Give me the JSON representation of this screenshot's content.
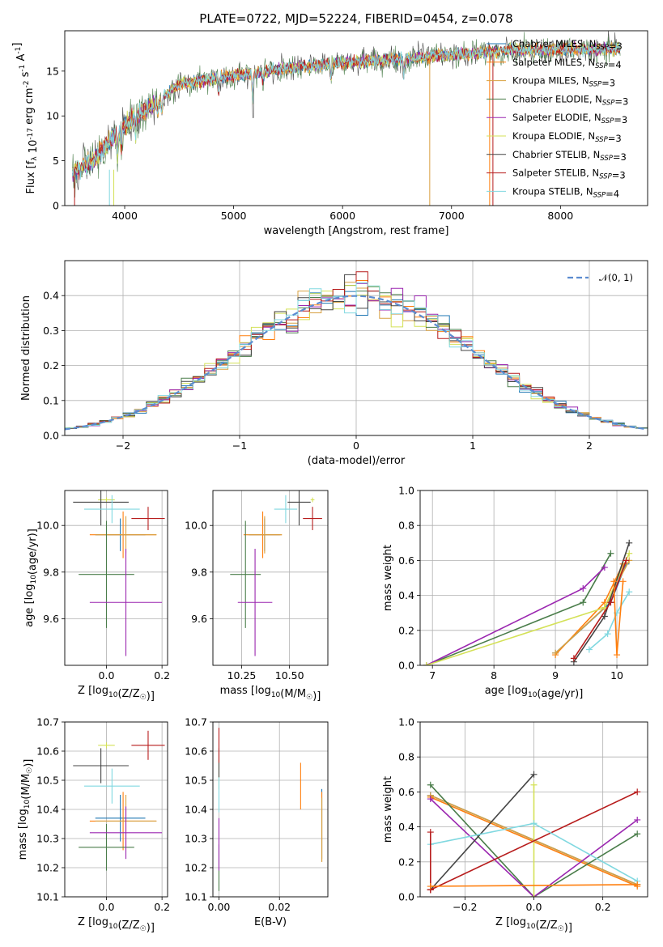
{
  "figure": {
    "title": "PLATE=0722, MJD=52224, FIBERID=0454, z=0.078"
  },
  "models": [
    {
      "label": "Chabrier MILES, N_SSP=3",
      "color": "#1f77b4"
    },
    {
      "label": "Salpeter MILES, N_SSP=4",
      "color": "#ff7f0e"
    },
    {
      "label": "Kroupa MILES, N_SSP=3",
      "color": "#d8a040"
    },
    {
      "label": "Chabrier ELODIE, N_SSP=3",
      "color": "#4a7d4a"
    },
    {
      "label": "Salpeter ELODIE, N_SSP=3",
      "color": "#9b27b0"
    },
    {
      "label": "Kroupa ELODIE, N_SSP=3",
      "color": "#d4e157"
    },
    {
      "label": "Chabrier STELIB, N_SSP=3",
      "color": "#444444"
    },
    {
      "label": "Salpeter STELIB, N_SSP=3",
      "color": "#b71c1c"
    },
    {
      "label": "Kroupa STELIB, N_SSP=4",
      "color": "#80d8e0"
    }
  ],
  "chart_data": [
    {
      "type": "line",
      "id": "spectrum",
      "xlabel": "wavelength [Angstrom, rest frame]",
      "ylabel": "Flux [f_λ 10^-17 erg cm^-2 s^-1 A^-1]",
      "xlim": [
        3450,
        8800
      ],
      "ylim": [
        0,
        19.5
      ],
      "xticks": [
        4000,
        5000,
        6000,
        7000,
        8000
      ],
      "yticks": [
        0,
        5,
        10,
        15
      ],
      "legend": "right",
      "continuum_x": [
        3500,
        3700,
        4000,
        4300,
        4500,
        5000,
        5500,
        6000,
        6500,
        7000,
        7500,
        8000,
        8500
      ],
      "continuum_y": [
        3.5,
        5.0,
        9.0,
        11.5,
        13.5,
        14.5,
        15.3,
        16.0,
        16.3,
        16.8,
        17.3,
        17.4,
        17.5
      ]
    },
    {
      "type": "bar",
      "id": "residuals",
      "xlabel": "(data-model)/error",
      "ylabel": "Normed distribution",
      "xlim": [
        -2.5,
        2.5
      ],
      "ylim": [
        0,
        0.5
      ],
      "xticks": [
        -2,
        -1,
        0,
        1,
        2
      ],
      "yticks": [
        0,
        0.1,
        0.2,
        0.3,
        0.4
      ],
      "legend": "top-right",
      "legend_label": "𝒩(0, 1)"
    },
    {
      "type": "scatter",
      "id": "age-vs-Z",
      "xlabel": "Z [log10(Z/Z☉)]",
      "ylabel": "age [log10(age/yr)]",
      "xlim": [
        -0.15,
        0.22
      ],
      "ylim": [
        9.4,
        10.15
      ],
      "xticks": [
        0.0,
        0.2
      ],
      "yticks": [
        9.6,
        9.8,
        10.0
      ],
      "points": [
        {
          "m": 0,
          "x": 0.05,
          "y": 9.96,
          "ex": 0.09,
          "ey": 0.07
        },
        {
          "m": 1,
          "x": 0.06,
          "y": 9.96,
          "ex": 0.12,
          "ey": 0.1
        },
        {
          "m": 2,
          "x": 0.07,
          "y": 9.96,
          "ex": 0.11,
          "ey": 0.08
        },
        {
          "m": 3,
          "x": 0.0,
          "y": 9.79,
          "ex": 0.1,
          "ey": 0.23
        },
        {
          "m": 4,
          "x": 0.07,
          "y": 9.67,
          "ex": 0.13,
          "ey": 0.23
        },
        {
          "m": 5,
          "x": 0.0,
          "y": 10.11,
          "ex": 0.03,
          "ey": 0.01
        },
        {
          "m": 6,
          "x": -0.02,
          "y": 10.1,
          "ex": 0.1,
          "ey": 0.1
        },
        {
          "m": 7,
          "x": 0.15,
          "y": 10.03,
          "ex": 0.06,
          "ey": 0.05
        },
        {
          "m": 8,
          "x": 0.02,
          "y": 10.07,
          "ex": 0.1,
          "ey": 0.06
        }
      ]
    },
    {
      "type": "scatter",
      "id": "age-vs-mass",
      "xlabel": "mass [log10(M/M☉)]",
      "ylabel": "",
      "xlim": [
        10.1,
        10.7
      ],
      "ylim": [
        9.4,
        10.15
      ],
      "xticks": [
        10.25,
        10.5
      ],
      "yticks": [
        9.6,
        9.8,
        10.0
      ],
      "points": [
        {
          "m": 0,
          "x": 10.37,
          "y": 9.96,
          "ex": 0.08,
          "ey": 0.07
        },
        {
          "m": 1,
          "x": 10.36,
          "y": 9.96,
          "ex": 0.1,
          "ey": 0.1
        },
        {
          "m": 2,
          "x": 10.37,
          "y": 9.96,
          "ex": 0.09,
          "ey": 0.08
        },
        {
          "m": 3,
          "x": 10.27,
          "y": 9.79,
          "ex": 0.08,
          "ey": 0.23
        },
        {
          "m": 4,
          "x": 10.32,
          "y": 9.67,
          "ex": 0.09,
          "ey": 0.23
        },
        {
          "m": 5,
          "x": 10.62,
          "y": 10.11,
          "ex": 0.01,
          "ey": 0.01
        },
        {
          "m": 6,
          "x": 10.55,
          "y": 10.1,
          "ex": 0.06,
          "ey": 0.1
        },
        {
          "m": 7,
          "x": 10.62,
          "y": 10.03,
          "ex": 0.05,
          "ey": 0.05
        },
        {
          "m": 8,
          "x": 10.48,
          "y": 10.07,
          "ex": 0.06,
          "ey": 0.06
        }
      ]
    },
    {
      "type": "line",
      "id": "mass-weight-vs-age",
      "xlabel": "age [log10(age/yr)]",
      "ylabel": "mass weight",
      "xlim": [
        6.8,
        10.5
      ],
      "ylim": [
        0,
        1.0
      ],
      "xticks": [
        7,
        8,
        9,
        10
      ],
      "yticks": [
        0.0,
        0.2,
        0.4,
        0.6,
        0.8,
        1.0
      ],
      "series": [
        {
          "m": 0,
          "x": [
            9.0,
            9.9,
            10.15
          ],
          "y": [
            0.07,
            0.36,
            0.58
          ]
        },
        {
          "m": 1,
          "x": [
            9.0,
            9.8,
            10.1
          ],
          "y": [
            0.06,
            0.36,
            0.58
          ]
        },
        {
          "m": 2,
          "x": [
            9.0,
            9.8,
            10.2
          ],
          "y": [
            0.07,
            0.33,
            0.6
          ]
        },
        {
          "m": 3,
          "x": [
            6.9,
            9.45,
            9.9
          ],
          "y": [
            0.0,
            0.36,
            0.64
          ]
        },
        {
          "m": 4,
          "x": [
            6.9,
            9.45,
            9.8
          ],
          "y": [
            0.0,
            0.44,
            0.56
          ]
        },
        {
          "m": 5,
          "x": [
            6.9,
            9.8,
            10.2
          ],
          "y": [
            0.0,
            0.33,
            0.64
          ]
        },
        {
          "m": 6,
          "x": [
            9.3,
            9.8,
            10.2
          ],
          "y": [
            0.02,
            0.28,
            0.7
          ]
        },
        {
          "m": 7,
          "x": [
            9.3,
            9.9,
            10.15
          ],
          "y": [
            0.04,
            0.36,
            0.6
          ]
        },
        {
          "m": 8,
          "x": [
            9.55,
            9.85,
            10.0,
            10.2
          ],
          "y": [
            0.09,
            0.18,
            0.3,
            0.42
          ]
        },
        {
          "m": 1,
          "x": [
            9.95,
            10.0,
            10.1
          ],
          "y": [
            0.48,
            0.06,
            0.48
          ]
        }
      ]
    },
    {
      "type": "scatter",
      "id": "mass-vs-Z",
      "xlabel": "Z [log10(Z/Z☉)]",
      "ylabel": "mass [log10(M/M☉)]",
      "xlim": [
        -0.15,
        0.22
      ],
      "ylim": [
        10.1,
        10.7
      ],
      "xticks": [
        0.0,
        0.2
      ],
      "yticks": [
        10.1,
        10.2,
        10.3,
        10.4,
        10.5,
        10.6,
        10.7
      ],
      "points": [
        {
          "m": 0,
          "x": 0.05,
          "y": 10.37,
          "ex": 0.09,
          "ey": 0.08
        },
        {
          "m": 1,
          "x": 0.06,
          "y": 10.36,
          "ex": 0.12,
          "ey": 0.1
        },
        {
          "m": 2,
          "x": 0.07,
          "y": 10.36,
          "ex": 0.11,
          "ey": 0.09
        },
        {
          "m": 3,
          "x": 0.0,
          "y": 10.27,
          "ex": 0.1,
          "ey": 0.08
        },
        {
          "m": 4,
          "x": 0.07,
          "y": 10.32,
          "ex": 0.13,
          "ey": 0.09
        },
        {
          "m": 5,
          "x": 0.0,
          "y": 10.62,
          "ex": 0.03,
          "ey": 0.01
        },
        {
          "m": 6,
          "x": -0.02,
          "y": 10.55,
          "ex": 0.1,
          "ey": 0.06
        },
        {
          "m": 7,
          "x": 0.15,
          "y": 10.62,
          "ex": 0.06,
          "ey": 0.05
        },
        {
          "m": 8,
          "x": 0.02,
          "y": 10.48,
          "ex": 0.1,
          "ey": 0.06
        }
      ]
    },
    {
      "type": "scatter",
      "id": "mass-vs-ebv",
      "xlabel": "E(B-V)",
      "ylabel": "",
      "xlim": [
        -0.002,
        0.036
      ],
      "ylim": [
        10.1,
        10.7
      ],
      "xticks": [
        0.0,
        0.02
      ],
      "yticks": [
        10.1,
        10.2,
        10.3,
        10.4,
        10.5,
        10.6,
        10.7
      ],
      "points": [
        {
          "m": 0,
          "x": 0.034,
          "y": 10.35,
          "ex": 0,
          "ey": 0.12
        },
        {
          "m": 1,
          "x": 0.034,
          "y": 10.34,
          "ex": 0,
          "ey": 0.12
        },
        {
          "m": 2,
          "x": 0.034,
          "y": 10.33,
          "ex": 0,
          "ey": 0.11
        },
        {
          "m": 3,
          "x": 0.0,
          "y": 10.2,
          "ex": 0,
          "ey": 0.08
        },
        {
          "m": 4,
          "x": 0.0,
          "y": 10.28,
          "ex": 0,
          "ey": 0.09
        },
        {
          "m": 5,
          "x": 0.0,
          "y": 10.52,
          "ex": 0,
          "ey": 0.05
        },
        {
          "m": 6,
          "x": 0.0,
          "y": 10.56,
          "ex": 0,
          "ey": 0.05
        },
        {
          "m": 7,
          "x": 0.0,
          "y": 10.62,
          "ex": 0,
          "ey": 0.06
        },
        {
          "m": 8,
          "x": 0.0,
          "y": 10.45,
          "ex": 0,
          "ey": 0.06
        },
        {
          "m": 1,
          "x": 0.027,
          "y": 10.48,
          "ex": 0,
          "ey": 0.08
        }
      ]
    },
    {
      "type": "line",
      "id": "mass-weight-vs-Z",
      "xlabel": "Z [log10(Z/Z☉)]",
      "ylabel": "mass weight",
      "xlim": [
        -0.33,
        0.33
      ],
      "ylim": [
        0,
        1.0
      ],
      "xticks": [
        -0.2,
        0.0,
        0.2
      ],
      "yticks": [
        0.0,
        0.2,
        0.4,
        0.6,
        0.8,
        1.0
      ],
      "series": [
        {
          "m": 0,
          "x": [
            -0.3,
            0.3
          ],
          "y": [
            0.58,
            0.07
          ]
        },
        {
          "m": 1,
          "x": [
            -0.3,
            0.3
          ],
          "y": [
            0.57,
            0.06
          ]
        },
        {
          "m": 2,
          "x": [
            -0.3,
            0.3
          ],
          "y": [
            0.58,
            0.07
          ]
        },
        {
          "m": 3,
          "x": [
            -0.3,
            0.0,
            0.3
          ],
          "y": [
            0.64,
            0.0,
            0.36
          ]
        },
        {
          "m": 4,
          "x": [
            -0.3,
            0.0,
            0.3
          ],
          "y": [
            0.56,
            0.0,
            0.44
          ]
        },
        {
          "m": 5,
          "x": [
            0.0,
            0.0
          ],
          "y": [
            0.0,
            0.64
          ]
        },
        {
          "m": 6,
          "x": [
            -0.3,
            0.0
          ],
          "y": [
            0.04,
            0.7
          ]
        },
        {
          "m": 7,
          "x": [
            -0.3,
            0.3
          ],
          "y": [
            0.04,
            0.6
          ]
        },
        {
          "m": 8,
          "x": [
            -0.3,
            0.0,
            0.3
          ],
          "y": [
            0.3,
            0.42,
            0.09
          ]
        },
        {
          "m": 7,
          "x": [
            -0.3,
            -0.3
          ],
          "y": [
            0.04,
            0.37
          ]
        },
        {
          "m": 1,
          "x": [
            -0.3,
            0.3
          ],
          "y": [
            0.06,
            0.07
          ]
        }
      ]
    }
  ]
}
